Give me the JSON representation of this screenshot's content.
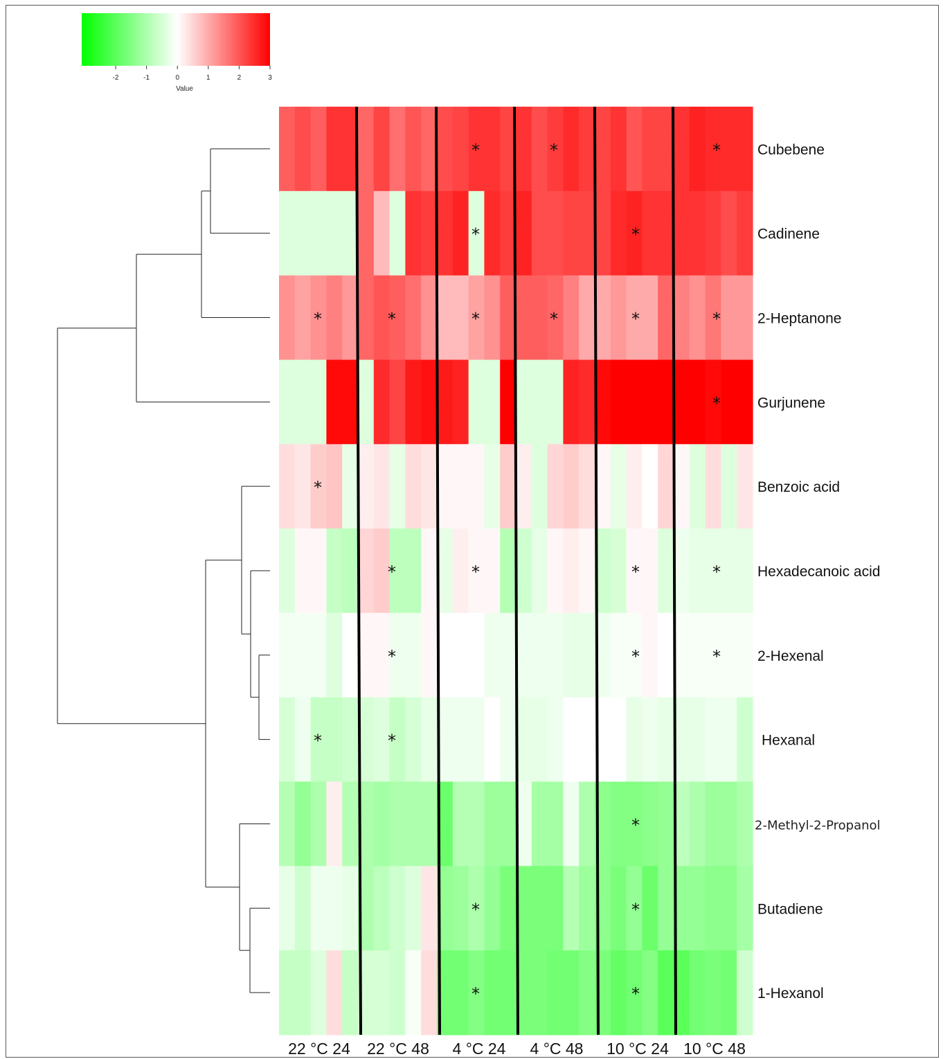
{
  "chart_data": {
    "type": "heatmap",
    "color_key": {
      "label": "Value",
      "ticks": [
        -2,
        -1,
        0,
        1,
        2,
        3
      ],
      "range": [
        -3.1,
        3
      ],
      "colors": {
        "low": "#00ff00",
        "mid": "#ffffff",
        "high": "#ff0000"
      }
    },
    "groups": [
      "22 °C 24",
      "22 °C 48",
      "4 °C 24",
      "4 °C 48",
      "10 °C 24",
      "10 °C 48"
    ],
    "rows": [
      "Cubebene",
      "Cadinene",
      "2-Heptanone",
      "Gurjunene",
      "Benzoic acid",
      "Hexadecanoic acid",
      "2-Hexenal",
      "Hexanal",
      "2-Methyl-2-Propanol",
      "Butadiene",
      "1-Hexanol"
    ],
    "values": [
      [
        1.9,
        2.1,
        1.9,
        2.4,
        2.4,
        1.8,
        2.2,
        1.7,
        2.0,
        1.8,
        2.1,
        2.2,
        2.4,
        2.4,
        2.2,
        2.4,
        2.1,
        2.3,
        2.5,
        2.3,
        2.2,
        2.4,
        2.0,
        2.2,
        2.2,
        2.4,
        2.6,
        2.5,
        2.5,
        2.5
      ],
      [
        -0.4,
        -0.4,
        -0.4,
        -0.4,
        -0.4,
        1.8,
        0.8,
        -0.4,
        2.4,
        2.3,
        2.4,
        2.6,
        -0.4,
        2.5,
        2.3,
        2.6,
        2.1,
        2.1,
        2.2,
        2.2,
        2.2,
        2.5,
        2.6,
        2.4,
        2.4,
        2.4,
        2.4,
        2.3,
        2.1,
        2.3
      ],
      [
        1.3,
        1.1,
        1.3,
        1.5,
        1.2,
        1.8,
        2.0,
        1.9,
        1.7,
        1.3,
        0.8,
        0.8,
        1.1,
        1.3,
        1.9,
        1.9,
        1.9,
        1.8,
        1.5,
        1.0,
        1.0,
        1.2,
        1.0,
        1.0,
        1.8,
        1.5,
        1.3,
        1.6,
        1.2,
        1.2
      ],
      [
        -0.4,
        -0.4,
        -0.4,
        2.9,
        2.9,
        -0.4,
        2.5,
        2.2,
        2.7,
        2.8,
        2.7,
        2.6,
        -0.4,
        -0.4,
        3.0,
        -0.4,
        -0.4,
        -0.4,
        2.6,
        2.5,
        2.9,
        3.0,
        3.0,
        3.0,
        3.0,
        3.0,
        3.0,
        2.9,
        3.0,
        3.0
      ],
      [
        0.4,
        0.3,
        0.6,
        0.7,
        -0.3,
        0.2,
        0.3,
        -0.3,
        0.4,
        0.3,
        0.1,
        0.1,
        0.1,
        -0.3,
        0.6,
        0.2,
        -0.4,
        0.5,
        0.6,
        0.4,
        0.1,
        -0.3,
        0.2,
        0.0,
        0.5,
        0.1,
        -0.4,
        0.4,
        -0.4,
        0.3
      ],
      [
        -0.4,
        0.1,
        0.1,
        -0.7,
        -0.8,
        0.5,
        0.6,
        -0.8,
        -0.8,
        0.1,
        -0.3,
        0.2,
        0.1,
        0.1,
        -0.9,
        -0.6,
        -0.3,
        0.1,
        0.2,
        0.1,
        -0.6,
        -0.5,
        0.1,
        0.1,
        -0.4,
        -0.2,
        -0.3,
        -0.3,
        -0.3,
        -0.3
      ],
      [
        -0.15,
        -0.15,
        -0.15,
        -0.4,
        0.0,
        0.1,
        0.1,
        -0.2,
        -0.2,
        0.1,
        0.0,
        0.0,
        0.0,
        -0.2,
        -0.2,
        -0.2,
        -0.2,
        -0.2,
        -0.3,
        -0.3,
        -0.2,
        -0.1,
        -0.1,
        0.1,
        0.0,
        -0.1,
        -0.1,
        -0.1,
        -0.1,
        -0.1
      ],
      [
        -0.5,
        -0.2,
        -0.7,
        -0.7,
        -0.6,
        -0.5,
        -0.4,
        -0.7,
        -0.5,
        -0.3,
        -0.2,
        -0.2,
        -0.2,
        0.0,
        -0.2,
        -0.3,
        -0.3,
        -0.2,
        0.0,
        0.0,
        0.0,
        0.0,
        -0.3,
        -0.2,
        -0.3,
        -0.3,
        -0.3,
        -0.2,
        -0.2,
        -0.6
      ],
      [
        -0.9,
        -1.3,
        -1.0,
        0.2,
        -0.9,
        -1.0,
        -1.1,
        -1.0,
        -1.0,
        -1.0,
        -1.8,
        -0.9,
        -0.9,
        -1.2,
        -1.2,
        -0.2,
        -1.1,
        -1.1,
        -0.2,
        -1.0,
        -1.4,
        -1.5,
        -1.5,
        -1.4,
        -1.3,
        -0.8,
        -1.0,
        -1.2,
        -1.2,
        -1.0
      ],
      [
        -0.3,
        -0.6,
        -0.2,
        -0.2,
        -0.3,
        -1.0,
        -0.8,
        -0.6,
        -0.4,
        0.3,
        -1.3,
        -1.2,
        -1.0,
        -1.3,
        -1.6,
        -1.6,
        -1.6,
        -1.6,
        -0.9,
        -1.2,
        -1.4,
        -1.6,
        -1.3,
        -1.8,
        -1.3,
        -1.3,
        -1.3,
        -1.4,
        -1.4,
        -1.1
      ],
      [
        -0.7,
        -0.7,
        -0.4,
        0.4,
        -0.7,
        -0.5,
        -0.5,
        -0.6,
        -0.1,
        0.4,
        -1.7,
        -1.7,
        -1.5,
        -1.7,
        -1.7,
        -1.6,
        -1.6,
        -1.7,
        -1.7,
        -1.5,
        -1.6,
        -1.9,
        -1.7,
        -1.5,
        -2.0,
        -2.0,
        -1.7,
        -1.6,
        -1.7,
        -0.6
      ]
    ],
    "significance_marker": "*",
    "significant": [
      [
        false,
        false,
        true,
        true,
        false,
        true
      ],
      [
        false,
        false,
        true,
        false,
        true,
        false
      ],
      [
        true,
        true,
        true,
        true,
        true,
        true
      ],
      [
        false,
        false,
        false,
        false,
        false,
        true
      ],
      [
        true,
        false,
        false,
        false,
        false,
        false
      ],
      [
        false,
        true,
        true,
        false,
        true,
        true
      ],
      [
        false,
        true,
        false,
        false,
        true,
        true
      ],
      [
        true,
        true,
        false,
        false,
        false,
        false
      ],
      [
        false,
        false,
        false,
        false,
        true,
        false
      ],
      [
        false,
        false,
        true,
        false,
        true,
        false
      ],
      [
        false,
        false,
        true,
        false,
        true,
        false
      ]
    ],
    "dendrogram": "row clustering: ((((Cubebene, Cadinene), 2-Heptanone), Gurjunene), ((Benzoic acid, (Hexadecanoic acid, (2-Hexenal, Hexanal))), (2-Methyl-2-Propanol, (Butadiene, 1-Hexanol))))"
  }
}
